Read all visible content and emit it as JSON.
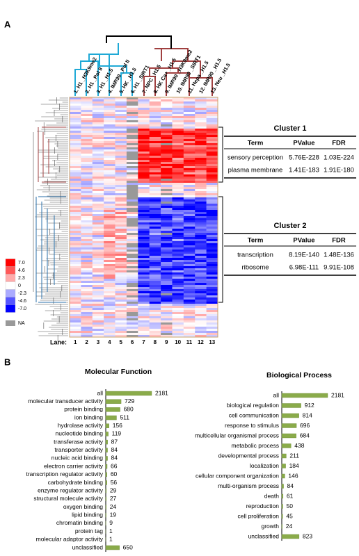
{
  "panel_labels": [
    "A",
    "B"
  ],
  "heatmap": {
    "samples": [
      "1. H1 _H3K9me2",
      "2. H1 _Pol II",
      "3. H1 _H1.5",
      "4. IMR90 _Pol II",
      "5. HK _H1.5",
      "6. H1 _SIRT1",
      "7. NPC _H1.5",
      "8. HK Ca+ _H1.5",
      "9. IMR90 _H3K9me2",
      "10. IMR90 _SIRT1",
      "11. Hepa _H1.5",
      "12. IMR90 _H1.5",
      "13. Neu _H1.5"
    ],
    "lane_label": "Lane:",
    "lanes": [
      "1",
      "2",
      "3",
      "4",
      "5",
      "6",
      "7",
      "8",
      "9",
      "10",
      "11",
      "12",
      "13"
    ],
    "legend_ticks": [
      {
        "value": 7,
        "label": "7.0"
      },
      4.6,
      2.3,
      0,
      -2.3,
      -4.6,
      {
        "value": -7,
        "label": "-7.0"
      }
    ],
    "na_label": "NA"
  },
  "clusters": [
    {
      "title": "Cluster 1",
      "header": [
        "Term",
        "PValue",
        "FDR"
      ],
      "rows": [
        [
          "sensory perception",
          "5.76E-228",
          "1.03E-224"
        ],
        [
          "plasma membrane",
          "1.41E-183",
          "1.91E-180"
        ]
      ]
    },
    {
      "title": "Cluster 2",
      "header": [
        "Term",
        "PValue",
        "FDR"
      ],
      "rows": [
        [
          "transcription",
          "8.19E-140",
          "1.48E-136"
        ],
        [
          "ribosome",
          "6.98E-111",
          "9.91E-108"
        ]
      ]
    }
  ],
  "chart_data": [
    {
      "type": "bar",
      "title": "Molecular Function",
      "color": "#8aab4a",
      "categories": [
        "all",
        "molecular transducer activity",
        "protein binding",
        "ion binding",
        "hydrolase activity",
        "nucleotide binding",
        "transferase activity",
        "transporter activity",
        "nucleic acid binding",
        "electron carrier activity",
        "transcription regulator activity",
        "carbohydrate binding",
        "enzyme regulator activity",
        "structural molecule activity",
        "oxygen binding",
        "lipid binding",
        "chromatin binding",
        "protein tag",
        "molecular adaptor activity",
        "unclassified"
      ],
      "values": [
        2181,
        729,
        680,
        511,
        156,
        119,
        87,
        84,
        84,
        66,
        60,
        56,
        29,
        27,
        24,
        19,
        9,
        1,
        1,
        650
      ]
    },
    {
      "type": "bar",
      "title": "Biological Process",
      "color": "#8aab4a",
      "categories": [
        "all",
        "biological regulation",
        "cell communication",
        "response to stimulus",
        "multicellular organismal process",
        "metabolic process",
        "developmental process",
        "localization",
        "cellular component organization",
        "multi-organism process",
        "death",
        "reproduction",
        "cell proliferation",
        "growth",
        "unclassified"
      ],
      "values": [
        2181,
        912,
        814,
        696,
        684,
        438,
        211,
        184,
        146,
        84,
        61,
        50,
        45,
        24,
        823
      ]
    }
  ]
}
